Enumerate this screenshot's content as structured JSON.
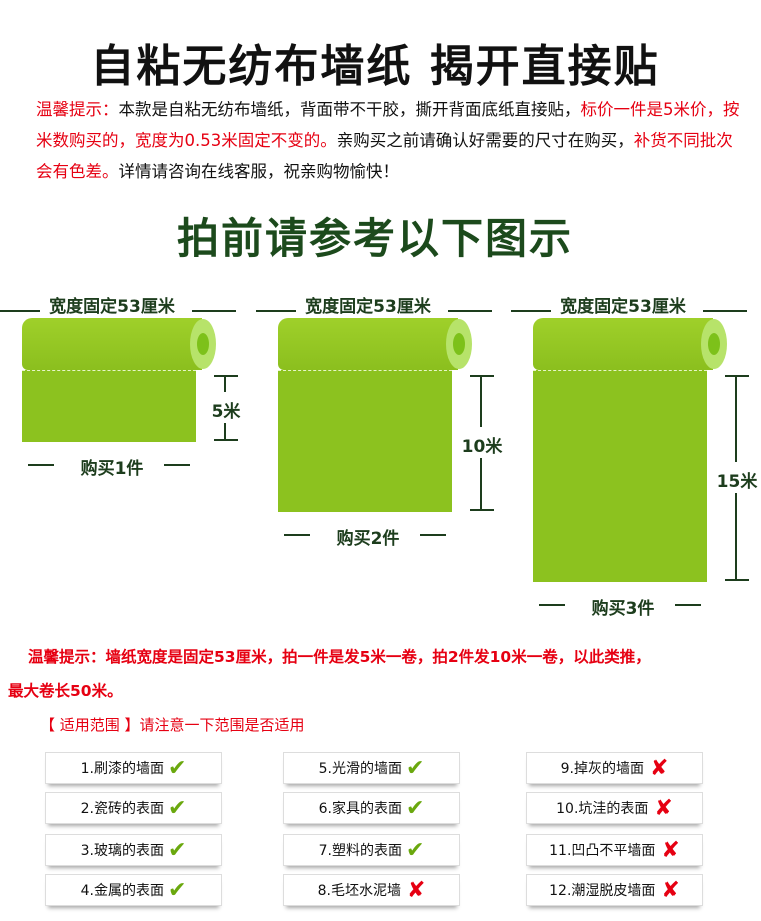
{
  "title": "自粘无纺布墙纸  揭开直接贴",
  "notice": {
    "label": "温馨提示：",
    "t1": "本款是自粘无纺布墙纸，背面带不干胶，撕开背面底纸直接贴，",
    "r1": "标价一件是5米价，按米数购买的，宽度为0.53米固定不变的。",
    "t2": "亲购买之前请确认好需要的尺寸在购买，",
    "r2": "补货不同批次会有色差。",
    "t3": "详情请咨询在线客服，祝亲购物愉快！"
  },
  "subtitle": "拍前请参考以下图示",
  "rolls": [
    {
      "width_label": "宽度固定53厘米",
      "length_label": "5米",
      "buy_label": "购买1件",
      "length_m": 5
    },
    {
      "width_label": "宽度固定53厘米",
      "length_label": "10米",
      "buy_label": "购买2件",
      "length_m": 10
    },
    {
      "width_label": "宽度固定53厘米",
      "length_label": "15米",
      "buy_label": "购买3件",
      "length_m": 15
    }
  ],
  "tip": {
    "line1": "温馨提示：墙纸宽度是固定53厘米，拍一件是发5米一卷，拍2件发10米一卷，以此类推，",
    "line2": "最大卷长50米。"
  },
  "range": {
    "title": "【 适用范围 】",
    "note": "请注意一下范围是否适用"
  },
  "surfaces": [
    {
      "label": "1.刷漆的墙面",
      "suitable": true
    },
    {
      "label": "2.瓷砖的表面",
      "suitable": true
    },
    {
      "label": "3.玻璃的表面",
      "suitable": true
    },
    {
      "label": "4.金属的表面",
      "suitable": true
    },
    {
      "label": "5.光滑的墙面",
      "suitable": true
    },
    {
      "label": "6.家具的表面",
      "suitable": true
    },
    {
      "label": "7.塑料的表面",
      "suitable": true
    },
    {
      "label": "8.毛坯水泥墙",
      "suitable": false
    },
    {
      "label": "9.掉灰的墙面",
      "suitable": false
    },
    {
      "label": "10.坑洼的表面",
      "suitable": false
    },
    {
      "label": "11.凹凸不平墙面",
      "suitable": false
    },
    {
      "label": "12.潮湿脱皮墙面",
      "suitable": false
    }
  ],
  "icons": {
    "suitable": "check-icon",
    "unsuitable": "cross-icon"
  },
  "colors": {
    "roll_green": "#8cc21f",
    "label_dark_green": "#1d3d1d",
    "warning_red": "#e60012",
    "check_green": "#6aa80e"
  }
}
